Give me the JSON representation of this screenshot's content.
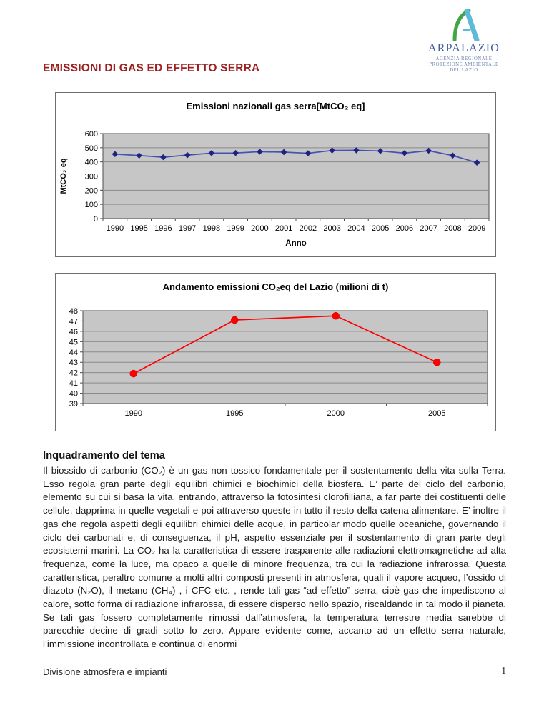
{
  "page": {
    "title": "EMISSIONI DI GAS ED EFFETTO SERRA",
    "title_color": "#9c1f1f",
    "footer_left": "Divisione atmosfera e impianti",
    "footer_page_number": "1"
  },
  "logo": {
    "name": "ARPALAZIO",
    "subtitle_lines": [
      "AGENZIA REGIONALE",
      "PROTEZIONE AMBIENTALE",
      "DEL LAZIO"
    ],
    "name_color": "#3f5f9d",
    "subtitle_color": "#7388b3",
    "swoosh_green": "#41a547",
    "bar_blue": "#5fb9d9"
  },
  "section": {
    "heading": "Inquadramento del tema",
    "body": "Il biossido di carbonio (CO₂) è un gas non tossico fondamentale per il sostentamento della vita sulla Terra. Esso regola gran parte degli equilibri chimici e biochimici della biosfera. E’ parte del ciclo del carbonio, elemento su cui si basa la vita, entrando, attraverso la fotosintesi clorofilliana, a far parte dei costituenti delle cellule, dapprima in quelle vegetali e poi attraverso queste in tutto il resto della catena alimentare. E’ inoltre il gas che regola aspetti degli equilibri chimici delle acque, in particolar modo quelle oceaniche, governando il ciclo dei carbonati e, di conseguenza, il pH, aspetto essenziale per il sostentamento di gran parte degli ecosistemi marini.  La CO₂ ha la caratteristica di essere trasparente alle radiazioni elettromagnetiche ad alta frequenza, come la luce, ma opaco a quelle di minore frequenza, tra cui la radiazione infrarossa. Questa caratteristica, peraltro comune a molti altri composti presenti in atmosfera, quali il vapore acqueo, l’ossido di diazoto (N₂O), il metano (CH₄) , i CFC etc. , rende tali gas “ad effetto” serra, cioè gas che impediscono al calore, sotto forma di radiazione infrarossa, di essere disperso nello spazio, riscaldando in tal modo il pianeta. Se tali gas fossero completamente rimossi dall’atmosfera, la temperatura terrestre media sarebbe di parecchie decine di gradi sotto lo zero. Appare evidente come, accanto ad un effetto serra naturale, l’immissione incontrollata e continua di enormi"
  },
  "chart_data": [
    {
      "type": "line",
      "title": "Emissioni nazionali gas serra[MtCO₂ eq]",
      "xlabel": "Anno",
      "ylabel": "MtCO₂ eq",
      "categories": [
        "1990",
        "1995",
        "1996",
        "1997",
        "1998",
        "1999",
        "2000",
        "2001",
        "2002",
        "2003",
        "2004",
        "2005",
        "2006",
        "2007",
        "2008",
        "2009"
      ],
      "values": [
        455,
        445,
        433,
        448,
        462,
        463,
        472,
        469,
        461,
        481,
        482,
        477,
        462,
        479,
        445,
        395
      ],
      "ylim": [
        0,
        600
      ],
      "ytick_step": 100,
      "grid": true,
      "legend": "none",
      "line_color": "#4652b2",
      "marker": "diamond",
      "marker_color": "#1e2382",
      "plot_bg": "#c6c6c6",
      "grid_color": "#8a8a8a"
    },
    {
      "type": "line",
      "title": "Andamento emissioni CO₂eq del Lazio (milioni di t)",
      "xlabel": "",
      "ylabel": "",
      "categories": [
        "1990",
        "1995",
        "2000",
        "2005"
      ],
      "values": [
        41.9,
        47.1,
        47.5,
        43.0
      ],
      "ylim": [
        39,
        48
      ],
      "ytick_step": 1,
      "grid": true,
      "legend": "none",
      "line_color": "#ff0000",
      "marker": "circle",
      "marker_color": "#ff0000",
      "plot_bg": "#c6c6c6",
      "grid_color": "#8a8a8a"
    }
  ]
}
